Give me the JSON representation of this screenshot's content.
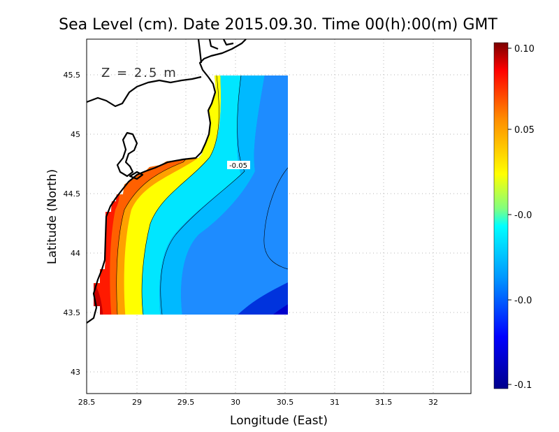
{
  "title": "Sea Level (cm). Date 2015.09.30. Time 00(h):00(m) GMT",
  "depth_label": "Z = 2.5 m",
  "chart_data": {
    "type": "heatmap",
    "title": "Sea Level (cm). Date 2015.09.30. Time 00(h):00(m) GMT",
    "xlabel": "Longitude (East)",
    "ylabel": "Latitude (North)",
    "xlim": [
      28.5,
      32.4
    ],
    "ylim": [
      42.8,
      45.8
    ],
    "x_ticks": [
      "28.5",
      "29",
      "29.5",
      "30",
      "30.5",
      "31",
      "31.5",
      "32"
    ],
    "y_ticks": [
      "43",
      "43.5",
      "44",
      "44.5",
      "45",
      "45.5"
    ],
    "grid": true,
    "field_extent": {
      "lon": [
        28.6,
        30.55
      ],
      "lat": [
        43.48,
        45.5
      ]
    },
    "contour_labels": [
      {
        "text": "-0.05",
        "lon": 30.02,
        "lat": 44.73
      }
    ],
    "colorbar": {
      "ticks": [
        "0.10",
        "0.05",
        "-0.0",
        "-0.0",
        "-0.1"
      ],
      "range": [
        -0.1,
        0.1
      ],
      "colors": [
        "#7a0000",
        "#ff0000",
        "#ff7f00",
        "#ffff00",
        "#00ffff",
        "#0080ff",
        "#00008b"
      ]
    }
  }
}
